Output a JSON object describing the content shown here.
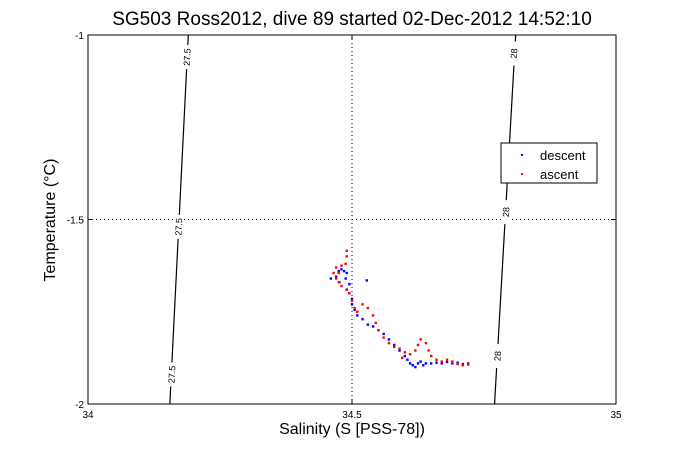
{
  "chart_data": {
    "type": "scatter",
    "title": "SG503 Ross2012, dive 89 started 02-Dec-2012 14:52:10",
    "xlabel": "Salinity (S [PSS-78])",
    "ylabel": "Temperature (°C)",
    "xlim": [
      34,
      35
    ],
    "ylim": [
      -2,
      -1
    ],
    "x_ticks": [
      "34",
      "34.5",
      "35"
    ],
    "y_ticks": [
      "-2",
      "-1.5",
      "-1"
    ],
    "grid": true,
    "legend_position": "right",
    "density_contours": [
      {
        "label": "27.5",
        "points": [
          [
            34.19,
            -1.0
          ],
          [
            34.155,
            -2.0
          ]
        ],
        "label_positions": [
          [
            34.188,
            -1.06
          ],
          [
            34.172,
            -1.52
          ],
          [
            34.159,
            -1.92
          ]
        ]
      },
      {
        "label": "28",
        "points": [
          [
            34.81,
            -1.0
          ],
          [
            34.77,
            -2.0
          ]
        ],
        "label_positions": [
          [
            34.807,
            -1.05
          ],
          [
            34.792,
            -1.48
          ],
          [
            34.776,
            -1.87
          ]
        ]
      }
    ],
    "series": [
      {
        "name": "descent",
        "color": "#0000ff",
        "points": [
          [
            34.46,
            -1.66
          ],
          [
            34.47,
            -1.655
          ],
          [
            34.475,
            -1.64
          ],
          [
            34.48,
            -1.635
          ],
          [
            34.485,
            -1.64
          ],
          [
            34.49,
            -1.645
          ],
          [
            34.488,
            -1.66
          ],
          [
            34.495,
            -1.675
          ],
          [
            34.49,
            -1.69
          ],
          [
            34.495,
            -1.7
          ],
          [
            34.5,
            -1.715
          ],
          [
            34.5,
            -1.73
          ],
          [
            34.505,
            -1.745
          ],
          [
            34.51,
            -1.76
          ],
          [
            34.52,
            -1.77
          ],
          [
            34.53,
            -1.785
          ],
          [
            34.54,
            -1.79
          ],
          [
            34.55,
            -1.8
          ],
          [
            34.56,
            -1.81
          ],
          [
            34.57,
            -1.825
          ],
          [
            34.58,
            -1.84
          ],
          [
            34.59,
            -1.855
          ],
          [
            34.6,
            -1.87
          ],
          [
            34.605,
            -1.88
          ],
          [
            34.61,
            -1.89
          ],
          [
            34.615,
            -1.895
          ],
          [
            34.62,
            -1.9
          ],
          [
            34.625,
            -1.89
          ],
          [
            34.63,
            -1.885
          ],
          [
            34.635,
            -1.895
          ],
          [
            34.64,
            -1.89
          ],
          [
            34.65,
            -1.89
          ],
          [
            34.66,
            -1.888
          ],
          [
            34.67,
            -1.89
          ],
          [
            34.68,
            -1.886
          ],
          [
            34.69,
            -1.89
          ],
          [
            34.7,
            -1.888
          ],
          [
            34.71,
            -1.892
          ],
          [
            34.72,
            -1.89
          ],
          [
            34.528,
            -1.665
          ],
          [
            34.476,
            -1.67
          ]
        ]
      },
      {
        "name": "ascent",
        "color": "#ff0000",
        "points": [
          [
            34.49,
            -1.585
          ],
          [
            34.49,
            -1.6
          ],
          [
            34.488,
            -1.62
          ],
          [
            34.48,
            -1.625
          ],
          [
            34.47,
            -1.63
          ],
          [
            34.465,
            -1.645
          ],
          [
            34.47,
            -1.66
          ],
          [
            34.475,
            -1.67
          ],
          [
            34.48,
            -1.68
          ],
          [
            34.49,
            -1.69
          ],
          [
            34.495,
            -1.7
          ],
          [
            34.5,
            -1.72
          ],
          [
            34.505,
            -1.74
          ],
          [
            34.51,
            -1.75
          ],
          [
            34.52,
            -1.73
          ],
          [
            34.53,
            -1.74
          ],
          [
            34.54,
            -1.76
          ],
          [
            34.545,
            -1.78
          ],
          [
            34.55,
            -1.8
          ],
          [
            34.56,
            -1.82
          ],
          [
            34.57,
            -1.835
          ],
          [
            34.58,
            -1.845
          ],
          [
            34.59,
            -1.85
          ],
          [
            34.6,
            -1.86
          ],
          [
            34.61,
            -1.865
          ],
          [
            34.62,
            -1.855
          ],
          [
            34.625,
            -1.84
          ],
          [
            34.63,
            -1.825
          ],
          [
            34.64,
            -1.835
          ],
          [
            34.645,
            -1.855
          ],
          [
            34.65,
            -1.87
          ],
          [
            34.66,
            -1.88
          ],
          [
            34.67,
            -1.885
          ],
          [
            34.68,
            -1.88
          ],
          [
            34.69,
            -1.885
          ],
          [
            34.7,
            -1.892
          ],
          [
            34.71,
            -1.895
          ],
          [
            34.72,
            -1.893
          ],
          [
            34.475,
            -1.645
          ],
          [
            34.595,
            -1.875
          ]
        ]
      }
    ]
  }
}
